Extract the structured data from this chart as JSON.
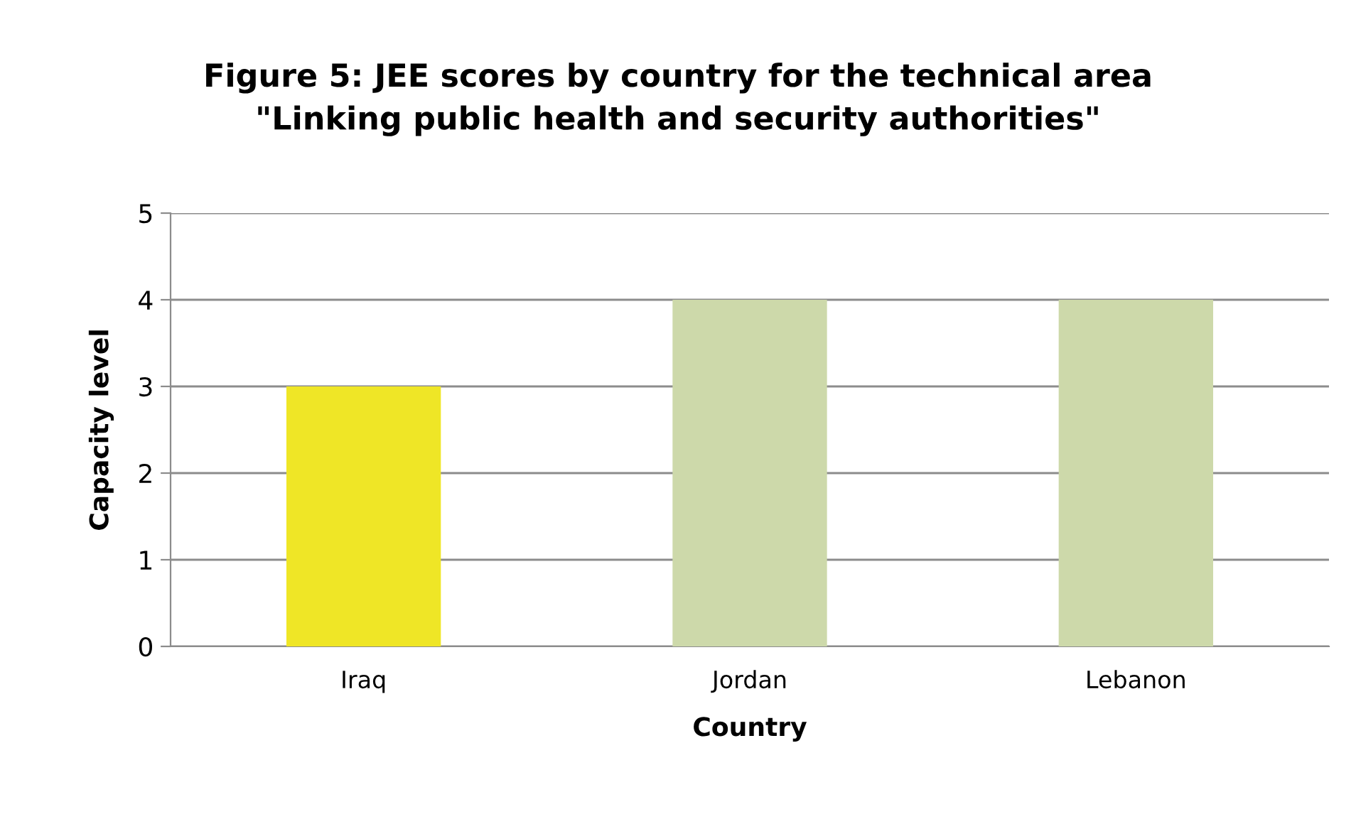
{
  "chart_data": {
    "type": "bar",
    "title": "Figure 5: JEE scores by country for the technical area\n\"Linking public health and security authorities\"",
    "xlabel": "Country",
    "ylabel": "Capacity level",
    "categories": [
      "Iraq",
      "Jordan",
      "Lebanon"
    ],
    "values": [
      3,
      4,
      4
    ],
    "colors": [
      "#efe626",
      "#cdd9aa",
      "#cdd9aa"
    ],
    "ylim": [
      0,
      5
    ],
    "yticks": [
      0,
      1,
      2,
      3,
      4,
      5
    ],
    "grid": "y",
    "legend": false
  }
}
